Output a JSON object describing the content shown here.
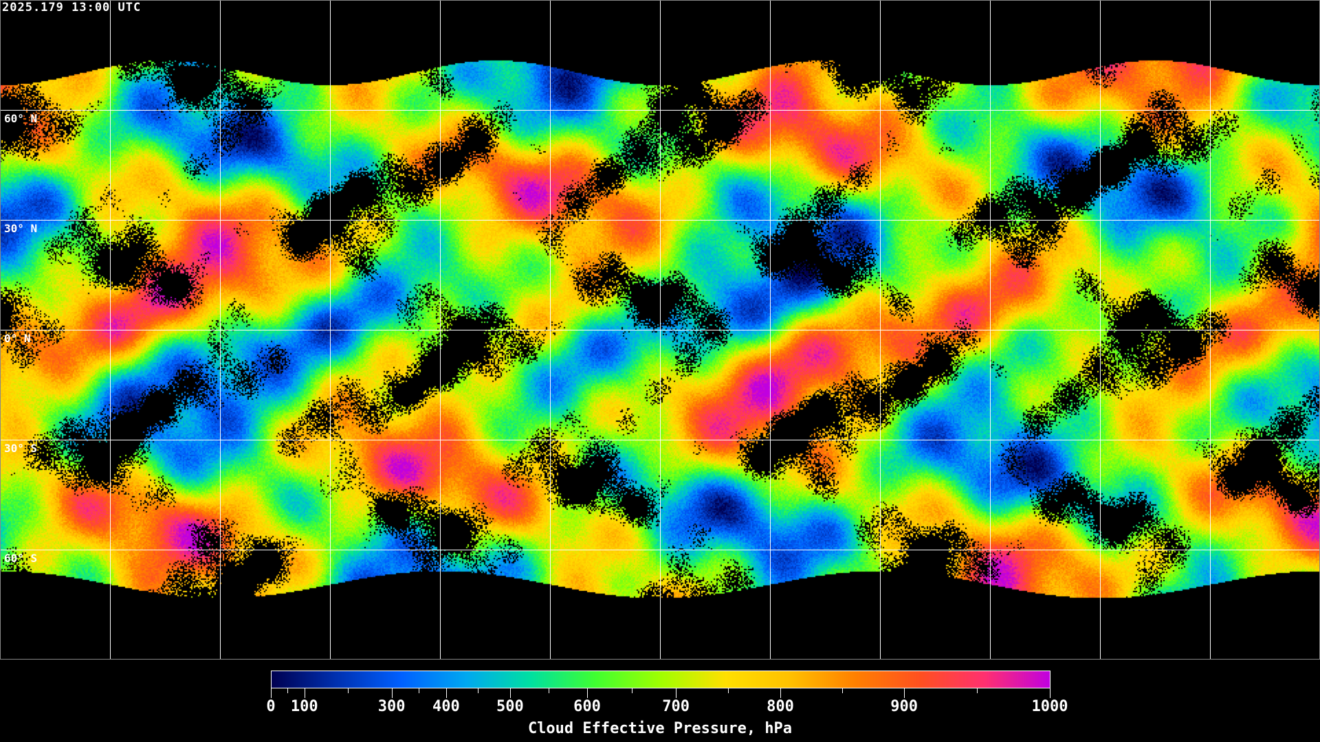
{
  "timestamp": "2025.179 13:00 UTC",
  "map": {
    "projection": "equirectangular",
    "lat_labels": [
      "60° N",
      "30° N",
      "0° N",
      "30° S",
      "60° S"
    ],
    "lat_values": [
      60,
      30,
      0,
      -30,
      -60
    ],
    "lon_grid_step_deg": 30,
    "gridline_color": "#ffffff",
    "coastline_color": "#ffffff",
    "no_data_color": "#000000"
  },
  "colorbar": {
    "title": "Cloud Effective Pressure, hPa",
    "tick_labels": [
      "0",
      "100",
      "300",
      "400",
      "500",
      "600",
      "700",
      "800",
      "900",
      "1000"
    ],
    "range": [
      0,
      1000
    ],
    "colors": [
      "#000050",
      "#0030b0",
      "#0060ff",
      "#00a8f0",
      "#00e0a0",
      "#40ff30",
      "#a0ff00",
      "#ffe000",
      "#ffc000",
      "#ff8000",
      "#ff5020",
      "#ff3070",
      "#c000e0"
    ]
  }
}
